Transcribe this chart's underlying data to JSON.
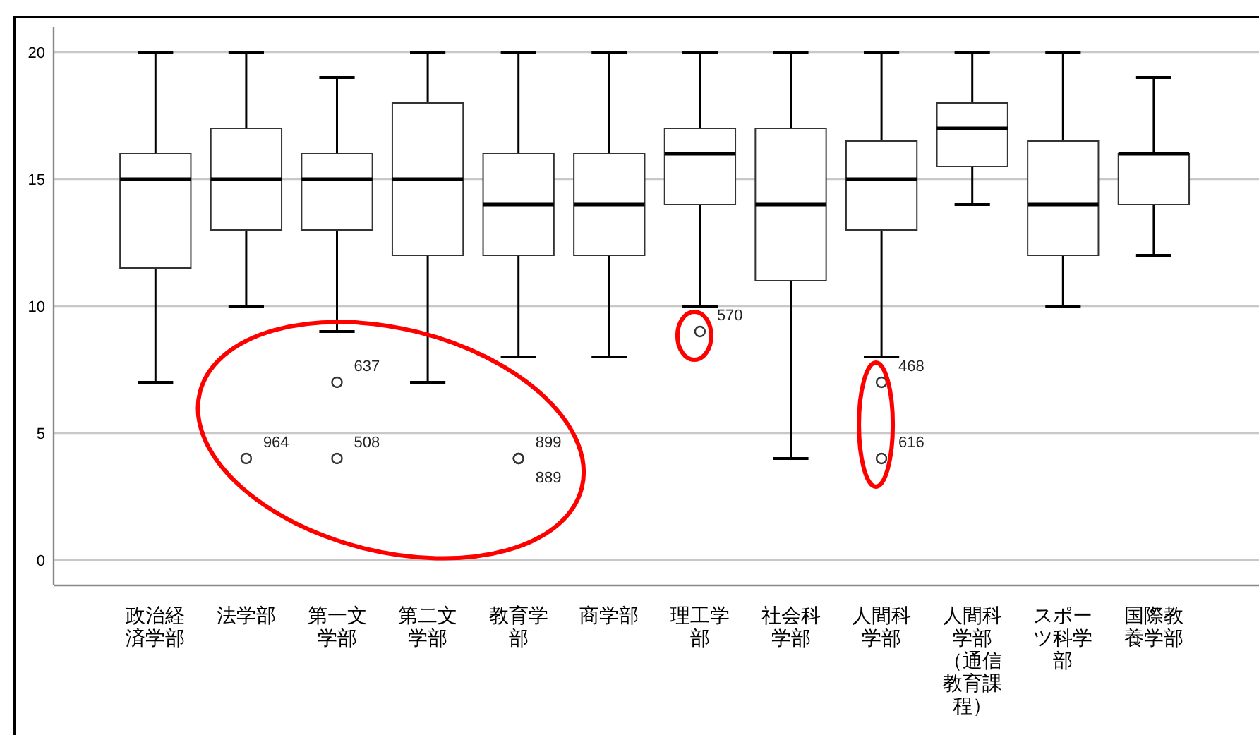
{
  "chart_data": {
    "type": "box",
    "categories": [
      "政治経済学部",
      "法学部",
      "第一文学部",
      "第二文学部",
      "教育学部",
      "商学部",
      "理工学部",
      "社会科学部",
      "人間科学部",
      "人間科学部（通信教育課程）",
      "スポーツ科学部",
      "国際教養学部"
    ],
    "boxes": [
      {
        "low": 7,
        "q1": 11.5,
        "median": 15,
        "q3": 16,
        "high": 20
      },
      {
        "low": 10,
        "q1": 13,
        "median": 15,
        "q3": 17,
        "high": 20,
        "outliers": [
          4
        ]
      },
      {
        "low": 9,
        "q1": 13,
        "median": 15,
        "q3": 16,
        "high": 19,
        "outliers": [
          7,
          4
        ]
      },
      {
        "low": 7,
        "q1": 12,
        "median": 15,
        "q3": 18,
        "high": 20
      },
      {
        "low": 8,
        "q1": 12,
        "median": 14,
        "q3": 16,
        "high": 20,
        "outliers": [
          4,
          4
        ]
      },
      {
        "low": 8,
        "q1": 12,
        "median": 14,
        "q3": 16,
        "high": 20
      },
      {
        "low": 10,
        "q1": 14,
        "median": 16,
        "q3": 17,
        "high": 20,
        "outliers": [
          9
        ]
      },
      {
        "low": 4,
        "q1": 11,
        "median": 14,
        "q3": 17,
        "high": 20
      },
      {
        "low": 8,
        "q1": 13,
        "median": 15,
        "q3": 16.5,
        "high": 20,
        "outliers": [
          7,
          4
        ]
      },
      {
        "low": 14,
        "q1": 15.5,
        "median": 17,
        "q3": 18,
        "high": 20
      },
      {
        "low": 10,
        "q1": 12,
        "median": 14,
        "q3": 16.5,
        "high": 20
      },
      {
        "low": 12,
        "q1": 14,
        "median": 16,
        "q3": 16,
        "high": 19
      }
    ],
    "ylim": [
      -1,
      21
    ],
    "yticks": [
      0,
      5,
      10,
      15,
      20
    ],
    "grid": "y",
    "annotations": [
      "964",
      "637",
      "508",
      "899",
      "889",
      "570",
      "468",
      "616"
    ]
  }
}
